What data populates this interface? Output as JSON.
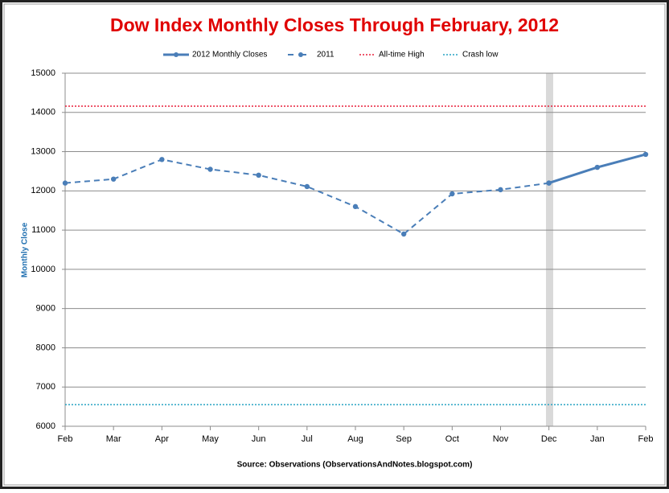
{
  "chart_data": {
    "type": "line",
    "title": "Dow Index Monthly Closes Through February, 2012",
    "y_label": "Monthly Close",
    "source": "Source: Observations (ObservationsAndNotes.blogspot.com)",
    "categories": [
      "Feb",
      "Mar",
      "Apr",
      "May",
      "Jun",
      "Jul",
      "Aug",
      "Sep",
      "Oct",
      "Nov",
      "Dec",
      "Jan",
      "Feb"
    ],
    "series": [
      {
        "name": "2012 Monthly Closes",
        "color": "#4a7eb8",
        "dashed": false,
        "values": [
          null,
          null,
          null,
          null,
          null,
          null,
          null,
          null,
          null,
          null,
          12200,
          12600,
          12930
        ]
      },
      {
        "name": "2011",
        "color": "#4a7eb8",
        "dashed": true,
        "values": [
          12200,
          12300,
          12800,
          12550,
          12400,
          12110,
          11600,
          10900,
          11925,
          12030,
          12200,
          null,
          null
        ]
      }
    ],
    "reference_lines": [
      {
        "name": "All-time High",
        "value": 14160,
        "color": "#e8203c"
      },
      {
        "name": "Crash low",
        "value": 6550,
        "color": "#27a3c4"
      }
    ],
    "ylim": [
      6000,
      15000
    ],
    "yticks": [
      6000,
      7000,
      8000,
      9000,
      10000,
      11000,
      12000,
      13000,
      14000,
      15000
    ],
    "grid": true
  }
}
